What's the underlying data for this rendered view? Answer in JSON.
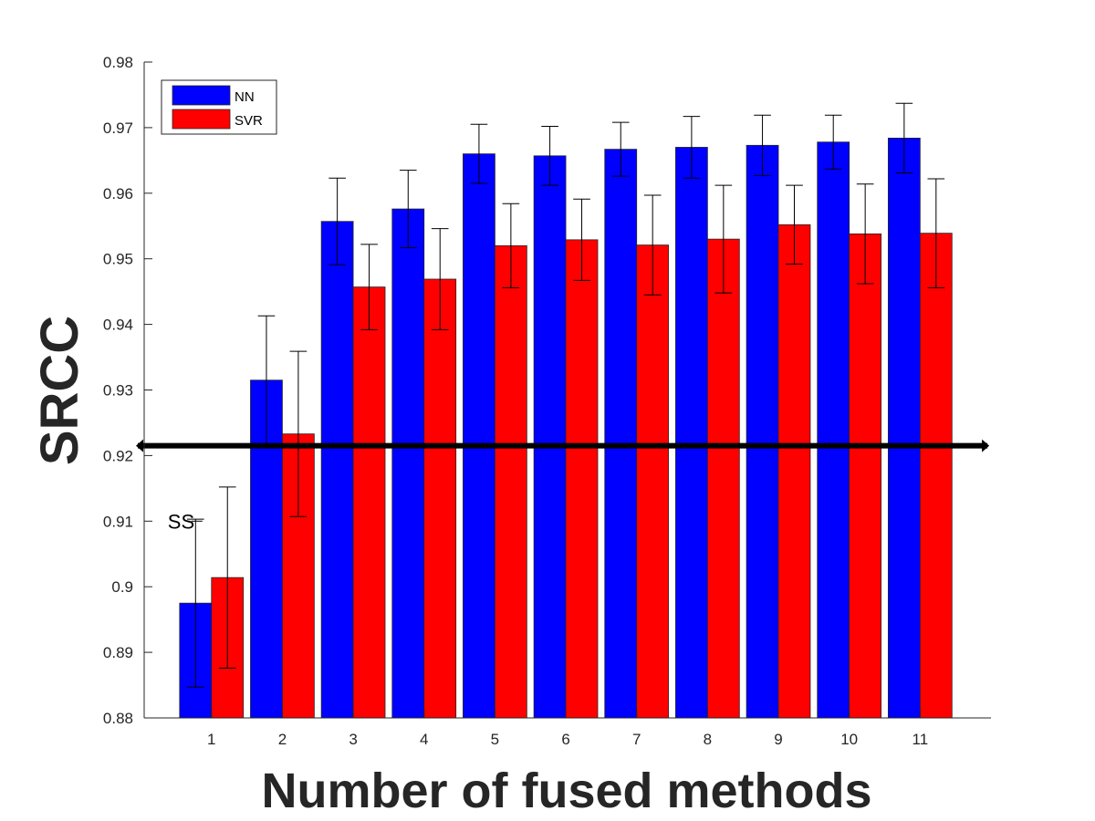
{
  "chart_data": {
    "type": "bar",
    "title": "",
    "xlabel": "Number of fused methods",
    "ylabel": "SRCC",
    "categories": [
      "1",
      "2",
      "3",
      "4",
      "5",
      "6",
      "7",
      "8",
      "9",
      "10",
      "11"
    ],
    "ylim": [
      0.88,
      0.98
    ],
    "yticks": [
      "0.88",
      "0.89",
      "0.9",
      "0.91",
      "0.92",
      "0.93",
      "0.94",
      "0.95",
      "0.96",
      "0.97",
      "0.98"
    ],
    "legend_position": "top-left",
    "grid": false,
    "series": [
      {
        "name": "NN",
        "color": "#0000ff",
        "values": [
          0.8975,
          0.9315,
          0.9557,
          0.9576,
          0.966,
          0.9657,
          0.9667,
          0.967,
          0.9673,
          0.9678,
          0.9684
        ],
        "error": [
          0.0128,
          0.0098,
          0.0066,
          0.0059,
          0.0045,
          0.0045,
          0.0041,
          0.0047,
          0.0046,
          0.0041,
          0.0053
        ]
      },
      {
        "name": "SVR",
        "color": "#ff0000",
        "values": [
          0.9014,
          0.9233,
          0.9457,
          0.9469,
          0.952,
          0.9529,
          0.9521,
          0.953,
          0.9552,
          0.9538,
          0.9539
        ],
        "error": [
          0.0138,
          0.0126,
          0.0065,
          0.0077,
          0.0064,
          0.0062,
          0.0076,
          0.0082,
          0.006,
          0.0076,
          0.0083
        ]
      }
    ],
    "reference_line": {
      "value": 0.9215
    },
    "annotations": [
      {
        "text": "SS",
        "x": "1",
        "y": 0.91
      }
    ]
  }
}
